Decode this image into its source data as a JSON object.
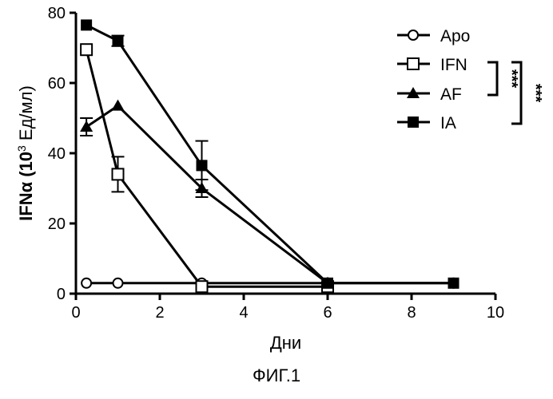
{
  "caption": "ФИГ.1",
  "chart_data": {
    "type": "line",
    "xlabel": "Дни",
    "ylabel_main": "IFNα (10",
    "ylabel_sup": "3",
    "ylabel_unit": " Ед/мл)",
    "xlim": [
      0,
      10
    ],
    "ylim": [
      0,
      80
    ],
    "xticks": [
      0,
      2,
      4,
      6,
      8,
      10
    ],
    "yticks": [
      0,
      20,
      40,
      60,
      80
    ],
    "grid": false,
    "legend_position": "top-right",
    "series": [
      {
        "name": "Apo",
        "marker": "open-circle",
        "x": [
          0.25,
          1,
          3,
          6,
          9
        ],
        "y": [
          3,
          3,
          3,
          3,
          3
        ],
        "err": [
          0,
          0,
          0,
          0,
          0
        ]
      },
      {
        "name": "IFN",
        "marker": "open-square",
        "x": [
          0.25,
          1,
          3,
          6
        ],
        "y": [
          69.5,
          34,
          2,
          2
        ],
        "err": [
          0,
          5,
          0,
          0
        ]
      },
      {
        "name": "AF",
        "marker": "filled-triangle",
        "x": [
          0.25,
          1,
          3,
          6
        ],
        "y": [
          47.5,
          53.5,
          30,
          3
        ],
        "err": [
          2.5,
          0,
          2.5,
          0
        ]
      },
      {
        "name": "IA",
        "marker": "filled-square",
        "x": [
          0.25,
          1,
          3,
          6,
          9
        ],
        "y": [
          76.5,
          72,
          36.5,
          3,
          3
        ],
        "err": [
          0,
          1.5,
          7,
          0,
          0
        ]
      }
    ],
    "significance": [
      {
        "label": "***",
        "between": [
          "IFN",
          "AF"
        ]
      },
      {
        "label": "***",
        "between": [
          "IFN",
          "IA"
        ]
      }
    ]
  }
}
